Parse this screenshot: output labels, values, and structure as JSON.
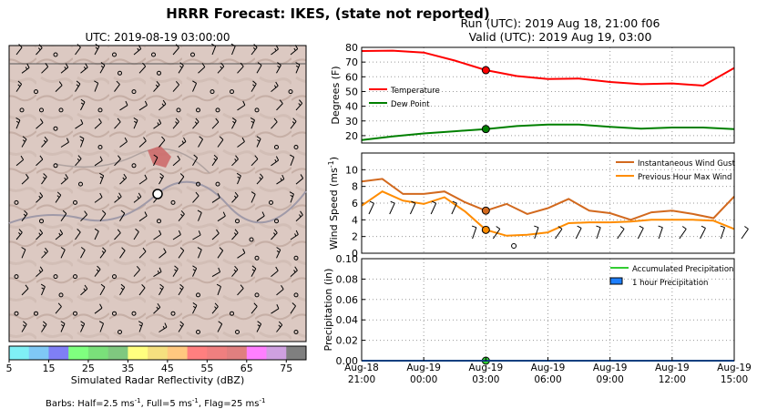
{
  "header": {
    "title": "HRRR Forecast: IKES, (state not reported)",
    "run": "Run (UTC): 2019 Aug 18, 21:00 f06",
    "valid": "Valid (UTC): 2019 Aug 19, 03:00"
  },
  "map": {
    "title": "UTC: 2019-08-19 03:00:00",
    "colorbar_label": "Simulated Radar Reflectivity (dBZ)",
    "colorbar_ticks": [
      "5",
      "15",
      "25",
      "35",
      "45",
      "55",
      "65",
      "75"
    ],
    "colorbar_colors": [
      "#7ff0f5",
      "#7fc8f5",
      "#7f7ff5",
      "#7fff7f",
      "#7ae07a",
      "#7fc87f",
      "#ffff7f",
      "#f5e07f",
      "#ffc87f",
      "#ff7f7f",
      "#ef7f7f",
      "#e07f7f",
      "#ff7fff",
      "#cfa0e0",
      "#7f7f7f"
    ],
    "barbs_note_prefix": "Barbs: Half=2.5 ms",
    "barbs_note_mid1": ", Full=5 ms",
    "barbs_note_mid2": ", Flag=25 ms",
    "barbs_exponent": "-1"
  },
  "chart_data": [
    {
      "type": "line",
      "panel": "temperature",
      "ylabel": "Degrees (F)",
      "ylim": [
        15,
        80
      ],
      "yticks": [
        "20",
        "30",
        "40",
        "50",
        "60",
        "70",
        "80"
      ],
      "x_hours": [
        0,
        1.5,
        3,
        4.5,
        6,
        7.5,
        9,
        10.5,
        12,
        13.5,
        15,
        16.5,
        18
      ],
      "series": [
        {
          "name": "Temperature",
          "color": "#ff0000",
          "values": [
            77.5,
            77.8,
            76.5,
            71.0,
            64.5,
            60.5,
            58.5,
            58.8,
            56.5,
            55.0,
            55.5,
            54.0,
            66.0
          ]
        },
        {
          "name": "Dew Point",
          "color": "#008000",
          "values": [
            17.0,
            19.5,
            21.5,
            23.0,
            24.5,
            26.5,
            27.5,
            27.5,
            26.0,
            24.8,
            25.5,
            25.5,
            24.5
          ]
        }
      ],
      "marker_hour": 6,
      "legend": "center-left"
    },
    {
      "type": "line",
      "panel": "wind",
      "ylabel": "Wind Speed (ms",
      "ylabel_exponent": "-1",
      "ylabel_close": ")",
      "ylim": [
        0,
        12
      ],
      "yticks": [
        "0",
        "2",
        "4",
        "6",
        "8",
        "10"
      ],
      "x_hours": [
        0,
        1,
        2,
        3,
        4,
        5,
        6,
        7,
        8,
        9,
        10,
        11,
        12,
        13,
        14,
        15,
        16,
        17,
        18
      ],
      "series": [
        {
          "name": "Instantaneous Wind Gust",
          "color": "#d2691e",
          "values": [
            8.6,
            8.9,
            7.1,
            7.1,
            7.4,
            6.1,
            5.1,
            5.9,
            4.7,
            5.4,
            6.5,
            5.1,
            4.8,
            4.0,
            4.9,
            5.1,
            4.7,
            4.2,
            6.8
          ]
        },
        {
          "name": "Previous Hour Max Wind",
          "color": "#ff8c00",
          "values": [
            5.7,
            7.4,
            6.3,
            5.9,
            6.7,
            5.0,
            2.8,
            2.1,
            2.2,
            2.5,
            3.6,
            3.7,
            3.7,
            3.8,
            4.0,
            4.0,
            4.0,
            3.9,
            2.9
          ]
        }
      ],
      "marker_hour": 6,
      "legend": "top-right"
    },
    {
      "type": "area",
      "panel": "precipitation",
      "ylabel": "Precipitation (in)",
      "ylim": [
        0,
        0.1
      ],
      "yticks": [
        "0.00",
        "0.02",
        "0.04",
        "0.06",
        "0.08",
        "0.10"
      ],
      "x_hours": [
        0,
        18
      ],
      "series": [
        {
          "name": "Accumulated Precipitation",
          "color": "#33cc33",
          "values": [
            0,
            0
          ]
        },
        {
          "name": "1 hour Precipitation",
          "color": "#1e7fff",
          "values": [
            0,
            0
          ]
        }
      ],
      "marker_hour": 6,
      "legend": "top-right"
    }
  ],
  "time_axis": {
    "ticks": [
      {
        "line1": "Aug-18",
        "line2": "21:00"
      },
      {
        "line1": "Aug-19",
        "line2": "00:00"
      },
      {
        "line1": "Aug-19",
        "line2": "03:00"
      },
      {
        "line1": "Aug-19",
        "line2": "06:00"
      },
      {
        "line1": "Aug-19",
        "line2": "09:00"
      },
      {
        "line1": "Aug-19",
        "line2": "12:00"
      },
      {
        "line1": "Aug-19",
        "line2": "15:00"
      }
    ]
  }
}
